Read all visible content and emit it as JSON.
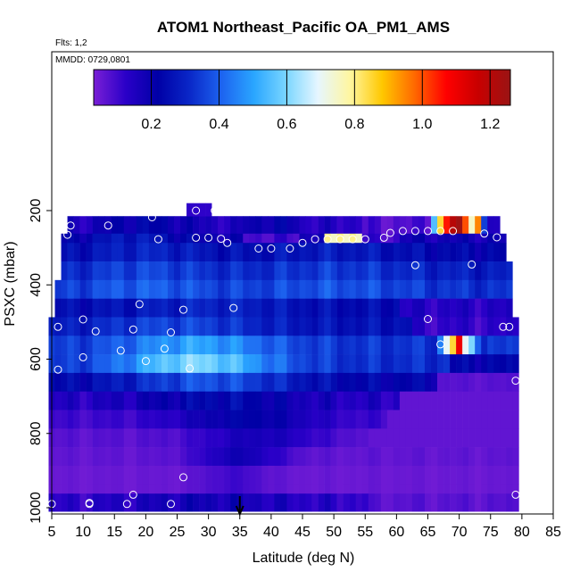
{
  "chart_data": {
    "type": "heatmap",
    "title": "ATOM1 Northeast_Pacific OA_PM1_AMS",
    "flights_note": "Flts: 1,2",
    "date_note": "MMDD: 0729,0801",
    "xlabel": "Latitude (deg N)",
    "ylabel": "PSXC (mbar)",
    "xlim": [
      5,
      85
    ],
    "ylim": [
      1010,
      150
    ],
    "x_ticks": [
      "5",
      "10",
      "15",
      "20",
      "25",
      "30",
      "35",
      "40",
      "45",
      "50",
      "55",
      "60",
      "65",
      "70",
      "75",
      "80",
      "85"
    ],
    "y_ticks": [
      "200",
      "400",
      "600",
      "800",
      "1000"
    ],
    "colorbar": {
      "min": 0.03,
      "max": 1.26,
      "ticks": [
        "0.2",
        "0.4",
        "0.6",
        "0.8",
        "1.0",
        "1.2"
      ],
      "colors": [
        "#7a1fd6",
        "#2a00c8",
        "#0000a6",
        "#0a28c8",
        "#1d64f0",
        "#2aa6ff",
        "#7ad6ff",
        "#e6f6ff",
        "#fff6a0",
        "#ffc800",
        "#ff6a00",
        "#ff0000",
        "#c80000",
        "#9a1414"
      ]
    },
    "latitude_marker": 35,
    "latitude_bins": [
      6,
      7,
      8,
      9,
      10,
      11,
      12,
      13,
      14,
      15,
      16,
      17,
      18,
      19,
      20,
      21,
      22,
      23,
      24,
      25,
      26,
      27,
      28,
      29,
      30,
      31,
      32,
      33,
      34,
      35,
      36,
      37,
      38,
      39,
      40,
      41,
      42,
      43,
      44,
      45,
      46,
      47,
      48,
      49,
      50,
      51,
      52,
      53,
      54,
      55,
      56,
      57,
      58,
      59,
      60,
      61,
      62,
      63,
      64,
      65,
      66,
      67,
      68,
      69,
      70,
      71,
      72,
      73,
      74,
      75,
      76,
      77,
      78
    ],
    "layers": [
      {
        "p_top": 215,
        "p_bot": 262,
        "lat_min": 8,
        "lat_max": 76,
        "pattern": "upper",
        "base": 0.15
      },
      {
        "p_top": 262,
        "p_bot": 287,
        "lat_min": 7,
        "lat_max": 77,
        "pattern": "upper2",
        "base": 0.18
      },
      {
        "p_top": 287,
        "p_bot": 337,
        "lat_min": 7,
        "lat_max": 77,
        "pattern": "mid",
        "base": 0.22
      },
      {
        "p_top": 337,
        "p_bot": 387,
        "lat_min": 7,
        "lat_max": 78,
        "pattern": "mid",
        "base": 0.28
      },
      {
        "p_top": 387,
        "p_bot": 437,
        "lat_min": 6,
        "lat_max": 78,
        "pattern": "mid",
        "base": 0.32
      },
      {
        "p_top": 437,
        "p_bot": 487,
        "lat_min": 6,
        "lat_max": 78,
        "pattern": "mid2",
        "base": 0.27
      },
      {
        "p_top": 487,
        "p_bot": 537,
        "lat_min": 5,
        "lat_max": 79,
        "pattern": "low1",
        "base": 0.3
      },
      {
        "p_top": 537,
        "p_bot": 587,
        "lat_min": 5,
        "lat_max": 79,
        "pattern": "low2",
        "base": 0.38
      },
      {
        "p_top": 587,
        "p_bot": 637,
        "lat_min": 5,
        "lat_max": 79,
        "pattern": "low3",
        "base": 0.42
      },
      {
        "p_top": 637,
        "p_bot": 687,
        "lat_min": 5,
        "lat_max": 79,
        "pattern": "low4",
        "base": 0.3
      },
      {
        "p_top": 687,
        "p_bot": 737,
        "lat_min": 5,
        "lat_max": 79,
        "pattern": "low5",
        "base": 0.18
      },
      {
        "p_top": 737,
        "p_bot": 787,
        "lat_min": 5,
        "lat_max": 79,
        "pattern": "low6",
        "base": 0.12
      },
      {
        "p_top": 787,
        "p_bot": 837,
        "lat_min": 5,
        "lat_max": 79,
        "pattern": "low7",
        "base": 0.09
      },
      {
        "p_top": 837,
        "p_bot": 887,
        "lat_min": 5,
        "lat_max": 79,
        "pattern": "low8",
        "base": 0.06
      },
      {
        "p_top": 887,
        "p_bot": 937,
        "lat_min": 5,
        "lat_max": 79,
        "pattern": "low9",
        "base": 0.05
      },
      {
        "p_top": 937,
        "p_bot": 962,
        "lat_min": 5,
        "lat_max": 79,
        "pattern": "low9",
        "base": 0.05
      },
      {
        "p_top": 962,
        "p_bot": 1010,
        "lat_min": 5,
        "lat_max": 79,
        "pattern": "bottom",
        "base": 0.12
      },
      {
        "p_top": 180,
        "p_bot": 215,
        "lat_min": 27,
        "lat_max": 30,
        "pattern": "cap",
        "base": 0.12
      }
    ],
    "points": [
      [
        8,
        240
      ],
      [
        14,
        240
      ],
      [
        21,
        218
      ],
      [
        28,
        200
      ],
      [
        31,
        200
      ],
      [
        7.5,
        265
      ],
      [
        22,
        277
      ],
      [
        28,
        273
      ],
      [
        30,
        273
      ],
      [
        32,
        276
      ],
      [
        33,
        287
      ],
      [
        38,
        302
      ],
      [
        40,
        302
      ],
      [
        43,
        302
      ],
      [
        45,
        287
      ],
      [
        47,
        277
      ],
      [
        49,
        277
      ],
      [
        51,
        277
      ],
      [
        53,
        277
      ],
      [
        55,
        277
      ],
      [
        58,
        273
      ],
      [
        59,
        260
      ],
      [
        61,
        255
      ],
      [
        63,
        255
      ],
      [
        65,
        255
      ],
      [
        67,
        255
      ],
      [
        69,
        255
      ],
      [
        74,
        262
      ],
      [
        76,
        272
      ],
      [
        63,
        347
      ],
      [
        72,
        345
      ],
      [
        19,
        452
      ],
      [
        26,
        467
      ],
      [
        34,
        462
      ],
      [
        10,
        493
      ],
      [
        65,
        492
      ],
      [
        6,
        513
      ],
      [
        12,
        525
      ],
      [
        18,
        520
      ],
      [
        24,
        528
      ],
      [
        77,
        513
      ],
      [
        78,
        513
      ],
      [
        67,
        560
      ],
      [
        23,
        572
      ],
      [
        16,
        577
      ],
      [
        10,
        595
      ],
      [
        20,
        605
      ],
      [
        27,
        625
      ],
      [
        6,
        628
      ],
      [
        79,
        658
      ],
      [
        26,
        918
      ],
      [
        18,
        965
      ],
      [
        79,
        965
      ],
      [
        5,
        990
      ],
      [
        11,
        990
      ],
      [
        17,
        990
      ],
      [
        24,
        990
      ],
      [
        11,
        987
      ]
    ]
  }
}
